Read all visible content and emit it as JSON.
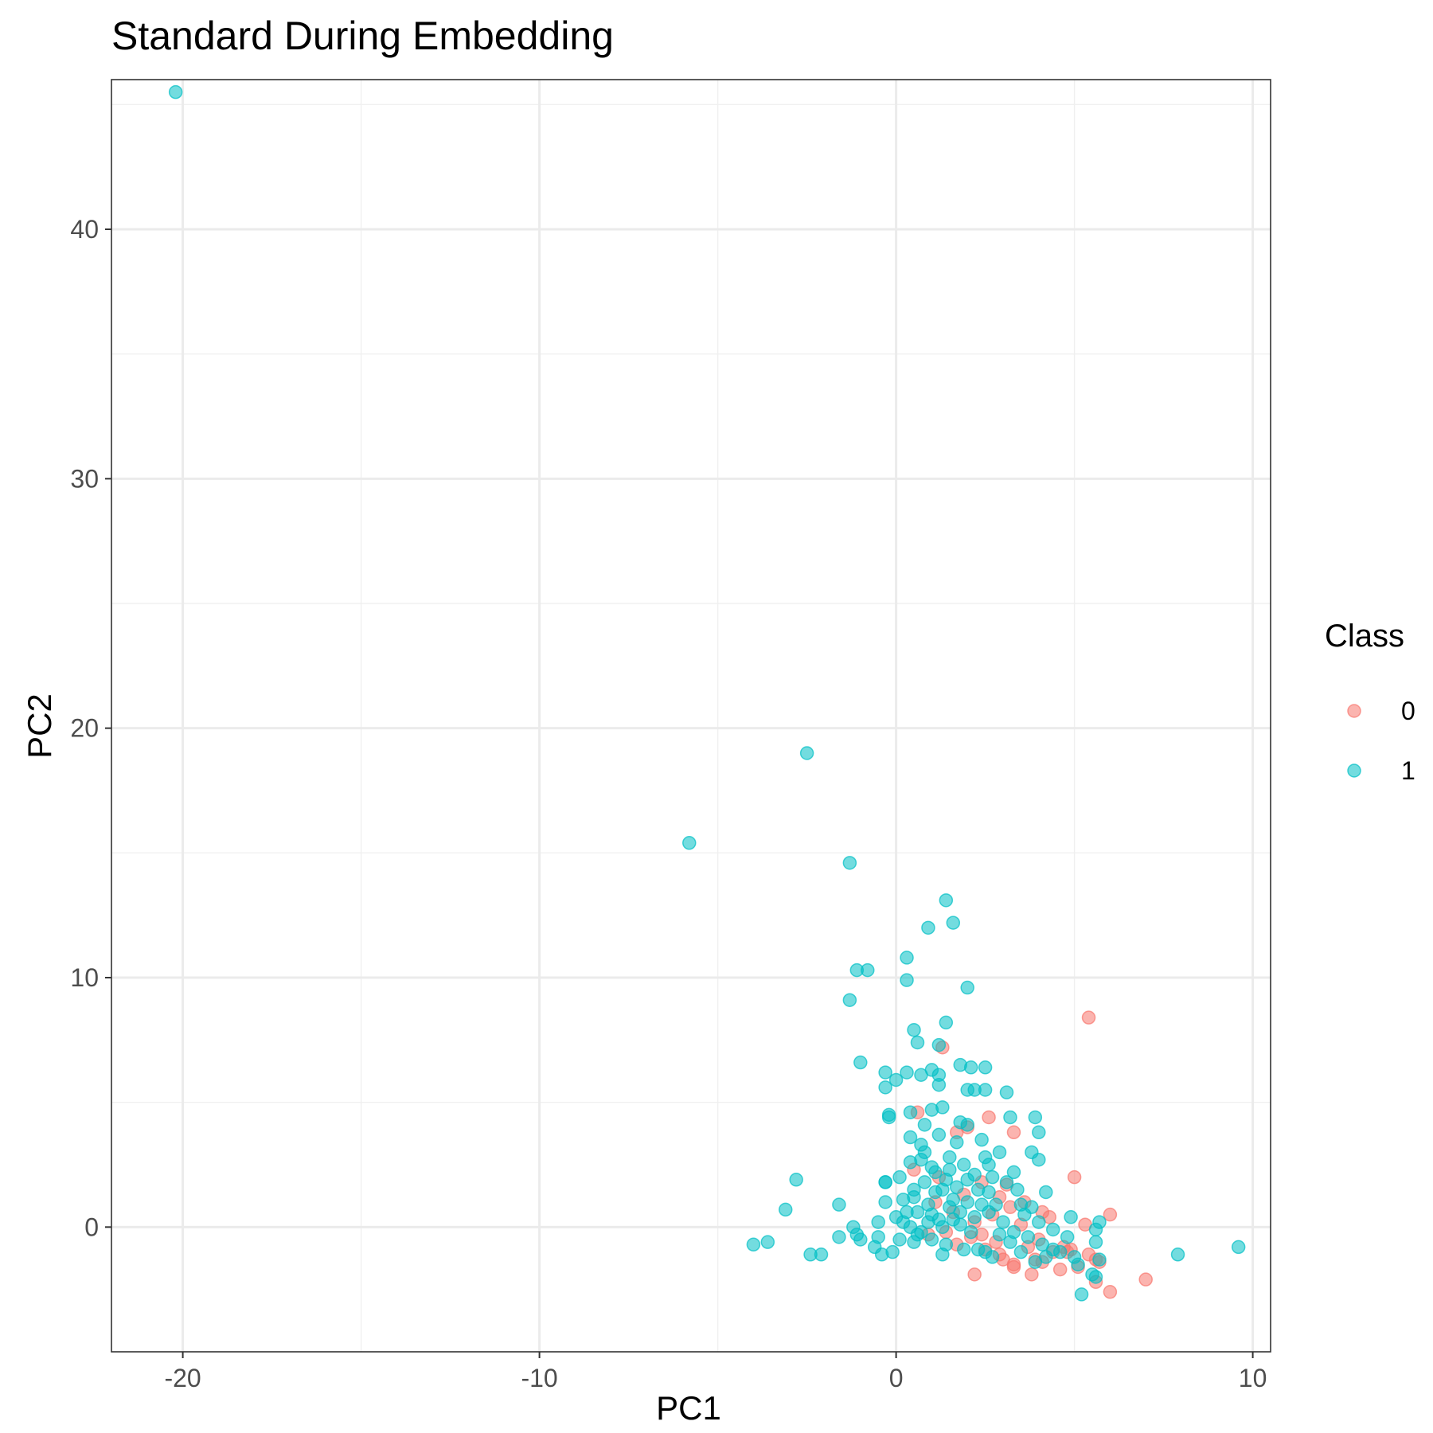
{
  "chart_data": {
    "type": "scatter",
    "title": "Standard During Embedding",
    "xlabel": "PC1",
    "ylabel": "PC2",
    "xlim": [
      -22,
      10.5
    ],
    "ylim": [
      -5,
      46
    ],
    "x_ticks": [
      -20,
      -10,
      0,
      10
    ],
    "y_ticks": [
      0,
      10,
      20,
      30,
      40
    ],
    "x_tick_labels": [
      "-20",
      "-10",
      "0",
      "10"
    ],
    "y_tick_labels": [
      "0",
      "10",
      "20",
      "30",
      "40"
    ],
    "grid": true,
    "legend": {
      "title": "Class",
      "position": "right",
      "entries": [
        "0",
        "1"
      ]
    },
    "series": [
      {
        "name": "0",
        "color": "#F8766D",
        "points": [
          [
            5.4,
            8.4
          ],
          [
            1.3,
            7.2
          ],
          [
            0.6,
            4.6
          ],
          [
            2.6,
            4.4
          ],
          [
            3.3,
            3.8
          ],
          [
            2.0,
            4.0
          ],
          [
            1.7,
            3.8
          ],
          [
            0.5,
            2.3
          ],
          [
            1.2,
            2.0
          ],
          [
            2.4,
            1.8
          ],
          [
            3.1,
            1.7
          ],
          [
            3.6,
            1.0
          ],
          [
            4.1,
            0.6
          ],
          [
            4.3,
            0.4
          ],
          [
            5.0,
            2.0
          ],
          [
            5.3,
            0.1
          ],
          [
            6.0,
            0.5
          ],
          [
            4.7,
            -0.8
          ],
          [
            4.4,
            -1.0
          ],
          [
            3.9,
            -1.3
          ],
          [
            3.3,
            -1.5
          ],
          [
            2.9,
            -1.1
          ],
          [
            2.5,
            -0.9
          ],
          [
            2.1,
            -0.4
          ],
          [
            1.7,
            -0.7
          ],
          [
            1.4,
            -0.2
          ],
          [
            0.9,
            -0.3
          ],
          [
            2.2,
            -1.9
          ],
          [
            3.3,
            -1.6
          ],
          [
            3.8,
            -1.9
          ],
          [
            4.1,
            -1.4
          ],
          [
            4.6,
            -1.7
          ],
          [
            5.1,
            -1.6
          ],
          [
            5.6,
            -2.2
          ],
          [
            5.7,
            -1.4
          ],
          [
            6.0,
            -2.6
          ],
          [
            7.0,
            -2.1
          ],
          [
            5.6,
            -1.3
          ],
          [
            4.8,
            -1.0
          ],
          [
            3.2,
            0.8
          ],
          [
            2.7,
            0.5
          ],
          [
            3.5,
            0.1
          ],
          [
            4.0,
            -0.5
          ],
          [
            2.8,
            -0.6
          ],
          [
            2.2,
            0.2
          ],
          [
            1.6,
            0.6
          ],
          [
            1.1,
            1.0
          ],
          [
            3.7,
            -0.8
          ],
          [
            4.9,
            -0.9
          ],
          [
            5.4,
            -1.1
          ],
          [
            3.0,
            -1.3
          ],
          [
            2.4,
            -0.3
          ],
          [
            1.9,
            1.3
          ],
          [
            2.9,
            1.2
          ]
        ]
      },
      {
        "name": "1",
        "color": "#00BFC4",
        "points": [
          [
            -20.2,
            45.5
          ],
          [
            -2.5,
            19.0
          ],
          [
            -5.8,
            15.4
          ],
          [
            -1.3,
            14.6
          ],
          [
            1.4,
            13.1
          ],
          [
            0.9,
            12.0
          ],
          [
            1.6,
            12.2
          ],
          [
            -1.1,
            10.3
          ],
          [
            -0.8,
            10.3
          ],
          [
            0.3,
            10.8
          ],
          [
            0.3,
            9.9
          ],
          [
            2.0,
            9.6
          ],
          [
            -1.3,
            9.1
          ],
          [
            1.4,
            8.2
          ],
          [
            0.5,
            7.9
          ],
          [
            0.6,
            7.4
          ],
          [
            1.2,
            7.3
          ],
          [
            -1.0,
            6.6
          ],
          [
            1.8,
            6.5
          ],
          [
            2.1,
            6.4
          ],
          [
            2.5,
            6.4
          ],
          [
            0.3,
            6.2
          ],
          [
            0.7,
            6.1
          ],
          [
            1.2,
            6.1
          ],
          [
            1.0,
            6.3
          ],
          [
            -0.3,
            6.2
          ],
          [
            0.0,
            5.9
          ],
          [
            -0.3,
            5.6
          ],
          [
            1.2,
            5.7
          ],
          [
            2.0,
            5.5
          ],
          [
            2.2,
            5.5
          ],
          [
            2.5,
            5.5
          ],
          [
            3.1,
            5.4
          ],
          [
            0.4,
            4.6
          ],
          [
            1.0,
            4.7
          ],
          [
            1.3,
            4.8
          ],
          [
            -0.2,
            4.5
          ],
          [
            -0.2,
            4.4
          ],
          [
            0.8,
            4.1
          ],
          [
            1.8,
            4.2
          ],
          [
            2.0,
            4.1
          ],
          [
            3.2,
            4.4
          ],
          [
            3.9,
            4.4
          ],
          [
            0.4,
            3.6
          ],
          [
            0.7,
            3.3
          ],
          [
            1.2,
            3.7
          ],
          [
            1.7,
            3.4
          ],
          [
            2.4,
            3.5
          ],
          [
            4.0,
            3.8
          ],
          [
            3.8,
            3.0
          ],
          [
            4.0,
            2.7
          ],
          [
            0.4,
            2.6
          ],
          [
            0.1,
            2.0
          ],
          [
            1.5,
            2.8
          ],
          [
            2.9,
            3.0
          ],
          [
            2.5,
            2.8
          ],
          [
            3.3,
            2.2
          ],
          [
            -0.3,
            1.8
          ],
          [
            -0.3,
            1.8
          ],
          [
            0.5,
            1.5
          ],
          [
            1.3,
            1.5
          ],
          [
            3.4,
            1.5
          ],
          [
            4.2,
            1.4
          ],
          [
            -2.8,
            1.9
          ],
          [
            -1.6,
            0.9
          ],
          [
            -3.1,
            0.7
          ],
          [
            -0.3,
            1.0
          ],
          [
            0.2,
            1.1
          ],
          [
            1.0,
            0.5
          ],
          [
            2.0,
            1.0
          ],
          [
            2.8,
            0.9
          ],
          [
            3.5,
            0.9
          ],
          [
            -1.2,
            0.0
          ],
          [
            -1.1,
            -0.3
          ],
          [
            -1.0,
            -0.5
          ],
          [
            -1.6,
            -0.4
          ],
          [
            -0.5,
            -0.4
          ],
          [
            -0.6,
            -0.8
          ],
          [
            -0.1,
            -1.0
          ],
          [
            0.1,
            -0.5
          ],
          [
            0.5,
            -0.6
          ],
          [
            -4.0,
            -0.7
          ],
          [
            -3.6,
            -0.6
          ],
          [
            -2.4,
            -1.1
          ],
          [
            -2.1,
            -1.1
          ],
          [
            -0.4,
            -1.1
          ],
          [
            -0.5,
            0.2
          ],
          [
            0.0,
            0.4
          ],
          [
            0.2,
            0.2
          ],
          [
            0.7,
            -0.2
          ],
          [
            1.3,
            -1.1
          ],
          [
            1.6,
            0.3
          ],
          [
            2.3,
            -0.9
          ],
          [
            2.5,
            -1.0
          ],
          [
            3.5,
            -1.0
          ],
          [
            3.9,
            -1.4
          ],
          [
            4.2,
            -1.2
          ],
          [
            4.4,
            -0.9
          ],
          [
            4.6,
            -1.0
          ],
          [
            4.8,
            -0.4
          ],
          [
            5.0,
            -1.2
          ],
          [
            5.1,
            -1.5
          ],
          [
            5.2,
            -2.7
          ],
          [
            5.5,
            -1.9
          ],
          [
            5.6,
            -2.0
          ],
          [
            5.6,
            -0.6
          ],
          [
            5.6,
            -0.1
          ],
          [
            5.7,
            0.2
          ],
          [
            5.7,
            -1.3
          ],
          [
            7.9,
            -1.1
          ],
          [
            9.6,
            -0.8
          ],
          [
            4.9,
            0.4
          ],
          [
            4.4,
            -0.1
          ],
          [
            4.0,
            0.2
          ],
          [
            3.8,
            0.8
          ],
          [
            3.6,
            0.5
          ],
          [
            3.0,
            0.2
          ],
          [
            2.6,
            0.6
          ],
          [
            2.2,
            0.4
          ],
          [
            1.8,
            0.1
          ],
          [
            1.5,
            0.8
          ],
          [
            1.2,
            0.3
          ],
          [
            0.9,
            0.9
          ],
          [
            0.6,
            0.6
          ],
          [
            0.4,
            0.0
          ],
          [
            0.5,
            1.2
          ],
          [
            0.8,
            1.8
          ],
          [
            1.1,
            2.2
          ],
          [
            1.4,
            1.9
          ],
          [
            1.7,
            1.6
          ],
          [
            2.0,
            1.9
          ],
          [
            2.3,
            1.5
          ],
          [
            2.6,
            1.4
          ],
          [
            0.7,
            2.7
          ],
          [
            1.0,
            2.4
          ],
          [
            1.9,
            2.5
          ],
          [
            2.2,
            2.1
          ],
          [
            2.7,
            2.0
          ],
          [
            3.1,
            1.8
          ],
          [
            0.6,
            -0.3
          ],
          [
            1.0,
            -0.5
          ],
          [
            1.4,
            -0.7
          ],
          [
            1.9,
            -0.9
          ],
          [
            2.7,
            -1.2
          ],
          [
            3.2,
            -0.6
          ],
          [
            3.7,
            -0.4
          ],
          [
            4.1,
            -0.7
          ],
          [
            0.3,
            0.6
          ],
          [
            1.6,
            1.1
          ],
          [
            2.4,
            0.9
          ],
          [
            0.9,
            0.2
          ],
          [
            1.3,
            0.0
          ],
          [
            1.1,
            1.4
          ],
          [
            1.8,
            0.6
          ],
          [
            2.1,
            -0.2
          ],
          [
            2.9,
            -0.3
          ],
          [
            3.3,
            -0.2
          ],
          [
            1.5,
            2.3
          ],
          [
            0.8,
            3.0
          ],
          [
            2.6,
            2.5
          ]
        ]
      }
    ]
  }
}
